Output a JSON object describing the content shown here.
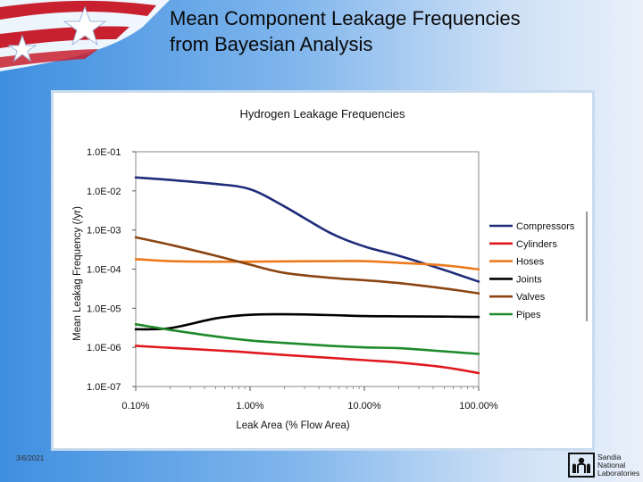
{
  "slide": {
    "title": "Mean Component Leakage Frequencies\nfrom Bayesian Analysis",
    "date": "3/6/2021",
    "logo_text": [
      "Sandia",
      "National",
      "Laboratories"
    ]
  },
  "chart_data": {
    "type": "line",
    "title": "Hydrogen Leakage Frequencies",
    "xlabel": "Leak Area (% Flow Area)",
    "ylabel": "Mean Leakag Frequency (/yr)",
    "x_scale": "log",
    "y_scale": "log",
    "xlim": [
      0.1,
      100
    ],
    "ylim": [
      1e-07,
      0.1
    ],
    "x_ticks": [
      {
        "value": 0.1,
        "label": "0.10%"
      },
      {
        "value": 1,
        "label": "1.00%"
      },
      {
        "value": 10,
        "label": "10.00%"
      },
      {
        "value": 100,
        "label": "100.00%"
      }
    ],
    "y_ticks": [
      {
        "value": 0.1,
        "label": "1.0E-01"
      },
      {
        "value": 0.01,
        "label": "1.0E-02"
      },
      {
        "value": 0.001,
        "label": "1.0E-03"
      },
      {
        "value": 0.0001,
        "label": "1.0E-04"
      },
      {
        "value": 1e-05,
        "label": "1.0E-05"
      },
      {
        "value": 1e-06,
        "label": "1.0E-06"
      },
      {
        "value": 1e-07,
        "label": "1.0E-07"
      }
    ],
    "grid": false,
    "legend_position": "right",
    "series": [
      {
        "name": "Compressors",
        "color": "#1f2d7a",
        "x": [
          0.1,
          0.2,
          0.5,
          1,
          2,
          5,
          10,
          20,
          50,
          100
        ],
        "y": [
          0.022,
          0.019,
          0.015,
          0.011,
          0.004,
          0.00085,
          0.00038,
          0.00022,
          9.5e-05,
          4.8e-05
        ]
      },
      {
        "name": "Cylinders",
        "color": "#e0191e",
        "x": [
          0.1,
          0.2,
          0.5,
          1,
          2,
          5,
          10,
          20,
          50,
          100
        ],
        "y": [
          1.1e-06,
          9.7e-07,
          8.4e-07,
          7.4e-07,
          6.4e-07,
          5.4e-07,
          4.7e-07,
          4.1e-07,
          3.1e-07,
          2.2e-07
        ]
      },
      {
        "name": "Hoses",
        "color": "#ec7a1c",
        "x": [
          0.1,
          0.2,
          0.5,
          1,
          2,
          5,
          10,
          20,
          50,
          100
        ],
        "y": [
          0.00018,
          0.00016,
          0.000155,
          0.000155,
          0.000158,
          0.00016,
          0.00016,
          0.000145,
          0.000125,
          9.85e-05
        ]
      },
      {
        "name": "Joints",
        "color": "#000000",
        "x": [
          0.1,
          0.2,
          0.5,
          1,
          2,
          5,
          10,
          20,
          50,
          100
        ],
        "y": [
          2.9e-06,
          3.1e-06,
          5.5e-06,
          6.8e-06,
          7e-06,
          6.7e-06,
          6.3e-06,
          6.2e-06,
          6.1e-06,
          6e-06
        ]
      },
      {
        "name": "Valves",
        "color": "#8b4513",
        "x": [
          0.1,
          0.2,
          0.5,
          1,
          2,
          5,
          10,
          20,
          50,
          100
        ],
        "y": [
          0.00065,
          0.00042,
          0.00022,
          0.00013,
          8e-05,
          6e-05,
          5.2e-05,
          4.4e-05,
          3.2e-05,
          2.4e-05
        ]
      },
      {
        "name": "Pipes",
        "color": "#1f8a2b",
        "x": [
          0.1,
          0.2,
          0.5,
          1,
          2,
          5,
          10,
          20,
          50,
          100
        ],
        "y": [
          3.9e-06,
          2.8e-06,
          1.9e-06,
          1.5e-06,
          1.3e-06,
          1.1e-06,
          1e-06,
          9.5e-07,
          7.9e-07,
          6.8e-07
        ]
      }
    ]
  }
}
